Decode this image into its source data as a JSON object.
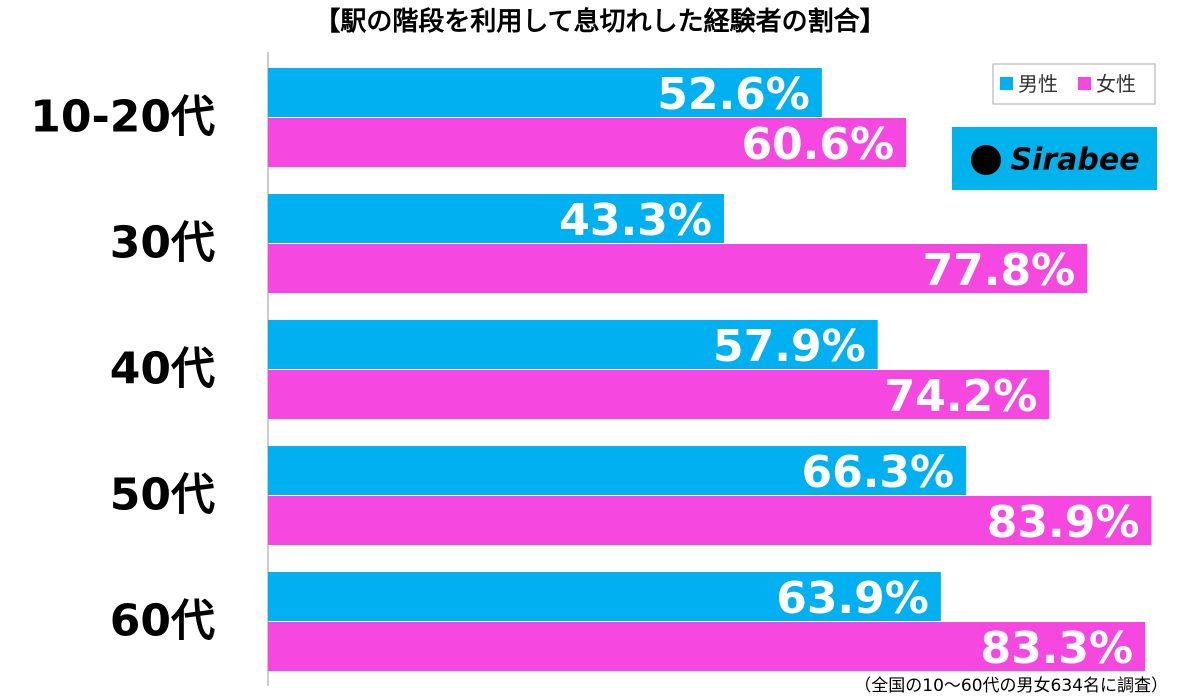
{
  "chart_data": {
    "type": "hbar",
    "title": "【駅の階段を利用して息切れした経験者の割合】",
    "categories": [
      "10-20代",
      "30代",
      "40代",
      "50代",
      "60代"
    ],
    "series": [
      {
        "name": "男性",
        "color": "#00b0f0",
        "values": [
          52.6,
          43.3,
          57.9,
          66.3,
          63.9
        ],
        "value_labels": [
          "52.6%",
          "43.3%",
          "57.9%",
          "66.3%",
          "63.9%"
        ]
      },
      {
        "name": "女性",
        "color": "#f648e0",
        "values": [
          60.6,
          77.8,
          74.2,
          83.9,
          83.3
        ],
        "value_labels": [
          "60.6%",
          "77.8%",
          "74.2%",
          "83.9%",
          "83.3%"
        ]
      }
    ],
    "xlim": [
      0,
      100
    ],
    "legend": "top-right",
    "logo": "Sirabee",
    "note": "（全国の10～60代の男女634名に調査）"
  }
}
